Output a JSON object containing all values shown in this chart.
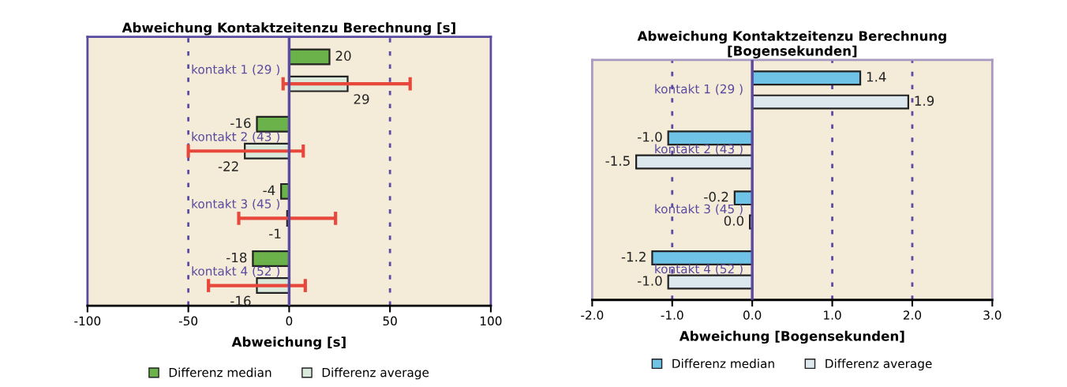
{
  "chart_data": [
    {
      "type": "bar",
      "orientation": "horizontal",
      "title": "Abweichung Kontaktzeitenzu Berechnung [s]",
      "xlabel": "Abweichung [s]",
      "categories": [
        "kontakt 1 (29 )",
        "kontakt 2 (43 )",
        "kontakt 3 (45 )",
        "kontakt 4 (52 )"
      ],
      "series": [
        {
          "name": "Differenz median",
          "color": "#6cb24a",
          "values": [
            20,
            -16,
            -4,
            -18
          ]
        },
        {
          "name": "Differenz average",
          "color": "#dbe9da",
          "values": [
            29,
            -22,
            -1,
            -16
          ],
          "errors": [
            [
              -3,
              60
            ],
            [
              -50,
              7
            ],
            [
              -25,
              23
            ],
            [
              -40,
              8
            ]
          ]
        }
      ],
      "data_labels": true,
      "xlim": [
        -100,
        100
      ],
      "xticks": [
        -100,
        -50,
        0,
        50,
        100
      ],
      "grid": "x",
      "legend": "bottom"
    },
    {
      "type": "bar",
      "orientation": "horizontal",
      "title": "Abweichung Kontaktzeitenzu Berechnung\n[Bogensekunden]",
      "xlabel": "Abweichung [Bogensekunden]",
      "categories": [
        "kontakt 1 (29 )",
        "kontakt 2 (43 )",
        "kontakt 3 (45 )",
        "kontakt 4 (52 )"
      ],
      "series": [
        {
          "name": "Differenz median",
          "color": "#6ec3e6",
          "values": [
            1.35,
            -1.05,
            -0.22,
            -1.25
          ],
          "value_labels": [
            "1.4",
            "-1.0",
            "-0.2",
            "-1.2"
          ]
        },
        {
          "name": "Differenz average",
          "color": "#dde8ee",
          "values": [
            1.95,
            -1.45,
            -0.03,
            -1.05
          ],
          "value_labels": [
            "1.9",
            "-1.5",
            "0.0",
            "-1.0"
          ]
        }
      ],
      "xlim": [
        -2,
        3
      ],
      "xticks": [
        {
          "value": -2,
          "label": "-2.0"
        },
        {
          "value": -1,
          "label": "-1.0"
        },
        {
          "value": 0,
          "label": "0.0"
        },
        {
          "value": 1,
          "label": "1.0"
        },
        {
          "value": 2,
          "label": "2.0"
        },
        {
          "value": 3,
          "label": "3.0"
        }
      ],
      "grid": "x",
      "legend": "bottom"
    }
  ]
}
